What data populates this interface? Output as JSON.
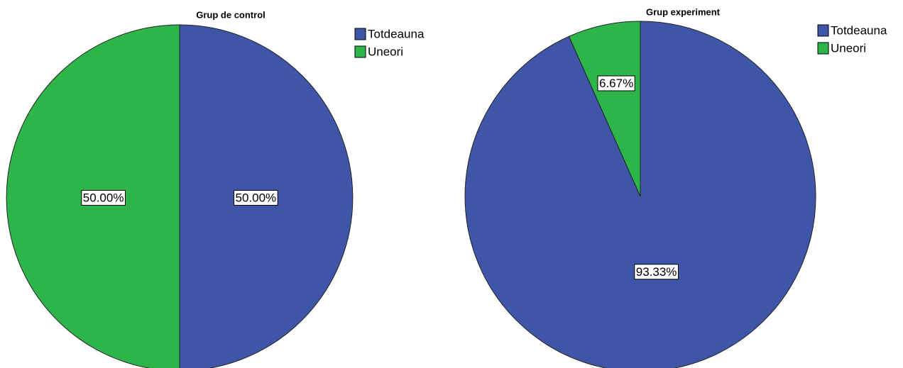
{
  "chart_data": [
    {
      "type": "pie",
      "title": "Grup de control",
      "categories": [
        "Totdeauna",
        "Uneori"
      ],
      "values": [
        50,
        50
      ],
      "value_labels": [
        "50.00%",
        "50.00%"
      ],
      "colors": [
        "#3f56a8",
        "#2db54a"
      ]
    },
    {
      "type": "pie",
      "title": "Grup experiment",
      "categories": [
        "Totdeauna",
        "Uneori"
      ],
      "values": [
        93.33,
        6.67
      ],
      "value_labels": [
        "93.33%",
        "6.67%"
      ],
      "colors": [
        "#3f56a8",
        "#2db54a"
      ]
    }
  ]
}
